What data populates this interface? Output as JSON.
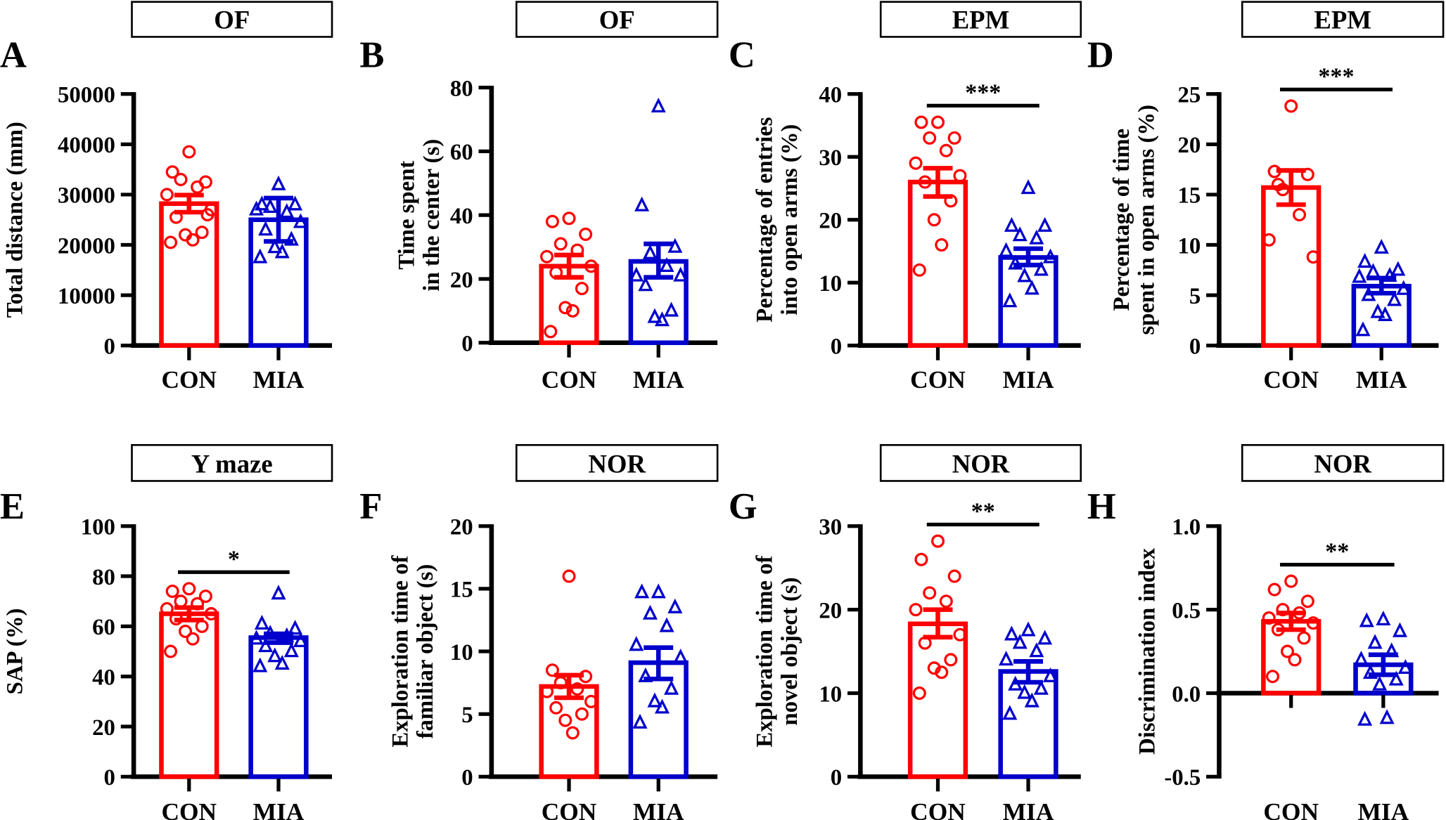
{
  "colors": {
    "CON": "#ff0000",
    "MIA": "#0000cc",
    "axis": "#000000"
  },
  "chart_data": [
    {
      "panel": "A",
      "type": "bar",
      "title": "OF",
      "ylabel": [
        "Total distance (mm)"
      ],
      "categories": [
        "CON",
        "MIA"
      ],
      "ylim": [
        0,
        50000
      ],
      "yticks": [
        0,
        10000,
        20000,
        30000,
        40000,
        50000
      ],
      "ytick_labels": [
        "0",
        "10000",
        "20000",
        "30000",
        "40000",
        "50000"
      ],
      "series": [
        {
          "name": "CON",
          "mean": 28200,
          "err": [
            26500,
            29900
          ],
          "marker": "circle",
          "points": [
            38500,
            34500,
            32500,
            33000,
            31500,
            30000,
            27000,
            25500,
            22500,
            22000,
            21000,
            20500,
            26000
          ]
        },
        {
          "name": "MIA",
          "mean": 25000,
          "err": [
            20700,
            29300
          ],
          "marker": "triangle",
          "points": [
            32000,
            28000,
            28000,
            27500,
            26500,
            27000,
            24500,
            23000,
            21000,
            19500,
            18500,
            17500
          ]
        }
      ],
      "significance": ""
    },
    {
      "panel": "B",
      "type": "bar",
      "title": "OF",
      "ylabel": [
        "Time spent",
        "in the center (s)"
      ],
      "categories": [
        "CON",
        "MIA"
      ],
      "ylim": [
        0,
        80
      ],
      "yticks": [
        0,
        20,
        40,
        60,
        80
      ],
      "ytick_labels": [
        "0",
        "20",
        "40",
        "60",
        "80"
      ],
      "series": [
        {
          "name": "CON",
          "mean": 24,
          "err": [
            20.5,
            27.5
          ],
          "marker": "circle",
          "points": [
            39,
            38,
            34,
            31,
            29,
            27,
            24,
            22,
            17,
            11,
            10,
            3.5
          ]
        },
        {
          "name": "MIA",
          "mean": 25.5,
          "err": [
            20.5,
            31
          ],
          "marker": "triangle",
          "points": [
            74,
            43,
            30,
            28,
            24,
            21,
            21,
            18,
            10,
            8,
            7
          ]
        }
      ],
      "significance": ""
    },
    {
      "panel": "C",
      "type": "bar",
      "title": "EPM",
      "ylabel": [
        "Percentage of entries",
        "into open arms (%)"
      ],
      "categories": [
        "CON",
        "MIA"
      ],
      "ylim": [
        0,
        40
      ],
      "yticks": [
        0,
        10,
        20,
        30,
        40
      ],
      "ytick_labels": [
        "0",
        "10",
        "20",
        "30",
        "40"
      ],
      "series": [
        {
          "name": "CON",
          "mean": 26,
          "err": [
            23.7,
            28.2
          ],
          "marker": "circle",
          "points": [
            35.5,
            35.5,
            33,
            33,
            31,
            29,
            27,
            26,
            23,
            20,
            16,
            12
          ]
        },
        {
          "name": "MIA",
          "mean": 14,
          "err": [
            12.8,
            15.4
          ],
          "marker": "triangle",
          "points": [
            25,
            19,
            19,
            17.5,
            17,
            15,
            14,
            13,
            12,
            11,
            9,
            7
          ]
        }
      ],
      "significance": "***"
    },
    {
      "panel": "D",
      "type": "bar",
      "title": "EPM",
      "ylabel": [
        "Percentage of time",
        "spent in open arms (%)"
      ],
      "categories": [
        "CON",
        "MIA"
      ],
      "ylim": [
        0,
        25
      ],
      "yticks": [
        0,
        5,
        10,
        15,
        20,
        25
      ],
      "ytick_labels": [
        "0",
        "5",
        "10",
        "15",
        "20",
        "25"
      ],
      "series": [
        {
          "name": "CON",
          "mean": 15.7,
          "err": [
            14,
            17.4
          ],
          "marker": "circle",
          "points": [
            23.8,
            17.3,
            17,
            15.5,
            13,
            10.5,
            8.8,
            16
          ]
        },
        {
          "name": "MIA",
          "mean": 5.9,
          "err": [
            5.2,
            6.7
          ],
          "marker": "triangle",
          "points": [
            9.7,
            8.3,
            7.5,
            7.3,
            6.9,
            6.8,
            5.6,
            5,
            4.5,
            3.3,
            3,
            1.5
          ]
        }
      ],
      "significance": "***"
    },
    {
      "panel": "E",
      "type": "bar",
      "title": "Y maze",
      "ylabel": [
        "SAP (%)"
      ],
      "categories": [
        "CON",
        "MIA"
      ],
      "ylim": [
        0,
        100
      ],
      "yticks": [
        0,
        20,
        40,
        60,
        80,
        100
      ],
      "ytick_labels": [
        "0",
        "20",
        "40",
        "60",
        "80",
        "100"
      ],
      "series": [
        {
          "name": "CON",
          "mean": 65,
          "err": [
            62.5,
            67.5
          ],
          "marker": "circle",
          "points": [
            75,
            74,
            72,
            70,
            69,
            67,
            65,
            63,
            60,
            58,
            55,
            50
          ]
        },
        {
          "name": "MIA",
          "mean": 55.5,
          "err": [
            53.5,
            57
          ],
          "marker": "triangle",
          "points": [
            73,
            61,
            59,
            57,
            56,
            55,
            54,
            52,
            50,
            48,
            45,
            44
          ]
        }
      ],
      "significance": "*"
    },
    {
      "panel": "F",
      "type": "bar",
      "title": "NOR",
      "ylabel": [
        "Exploration time of",
        "familiar object  (s)"
      ],
      "categories": [
        "CON",
        "MIA"
      ],
      "ylim": [
        0,
        20
      ],
      "yticks": [
        0,
        5,
        10,
        15,
        20
      ],
      "ytick_labels": [
        "0",
        "5",
        "10",
        "15",
        "20"
      ],
      "series": [
        {
          "name": "CON",
          "mean": 7.2,
          "err": [
            6.3,
            8.1
          ],
          "marker": "circle",
          "points": [
            16,
            8.5,
            8,
            7.5,
            7,
            6.8,
            6,
            5.5,
            5,
            4.5,
            3.5
          ]
        },
        {
          "name": "MIA",
          "mean": 9.1,
          "err": [
            7.8,
            10.3
          ],
          "marker": "triangle",
          "points": [
            14.7,
            14.7,
            13.5,
            13,
            12,
            10.5,
            9.5,
            8,
            7,
            6,
            5.5,
            4.3
          ]
        }
      ],
      "significance": ""
    },
    {
      "panel": "G",
      "type": "bar",
      "title": "NOR",
      "ylabel": [
        "Exploration time of",
        "novel object  (s)"
      ],
      "categories": [
        "CON",
        "MIA"
      ],
      "ylim": [
        0,
        30
      ],
      "yticks": [
        0,
        10,
        20,
        30
      ],
      "ytick_labels": [
        "0",
        "10",
        "20",
        "30"
      ],
      "series": [
        {
          "name": "CON",
          "mean": 18.3,
          "err": [
            16.7,
            20
          ],
          "marker": "circle",
          "points": [
            28.2,
            26,
            24,
            22,
            21,
            20,
            17,
            16,
            14,
            13,
            12.5,
            10
          ]
        },
        {
          "name": "MIA",
          "mean": 12.6,
          "err": [
            11.3,
            13.8
          ],
          "marker": "triangle",
          "points": [
            17.5,
            17,
            16.5,
            16,
            15,
            14,
            12,
            11,
            10.5,
            10,
            9,
            7.5
          ]
        }
      ],
      "significance": "**"
    },
    {
      "panel": "H",
      "type": "bar",
      "title": "NOR",
      "ylabel": [
        "Discrimination index"
      ],
      "categories": [
        "CON",
        "MIA"
      ],
      "ylim": [
        -0.5,
        1.0
      ],
      "yticks": [
        -0.5,
        0,
        0.5,
        1.0
      ],
      "ytick_labels": [
        "-0.5",
        "0.0",
        "0.5",
        "1.0"
      ],
      "series": [
        {
          "name": "CON",
          "mean": 0.43,
          "err": [
            0.38,
            0.48
          ],
          "marker": "circle",
          "points": [
            0.67,
            0.62,
            0.55,
            0.5,
            0.48,
            0.45,
            0.42,
            0.38,
            0.33,
            0.25,
            0.2,
            0.1
          ]
        },
        {
          "name": "MIA",
          "mean": 0.17,
          "err": [
            0.11,
            0.23
          ],
          "marker": "triangle",
          "points": [
            0.44,
            0.43,
            0.37,
            0.3,
            0.25,
            0.2,
            0.15,
            0.12,
            0.08,
            0.05,
            -0.15,
            -0.16
          ]
        }
      ],
      "significance": "**"
    }
  ]
}
